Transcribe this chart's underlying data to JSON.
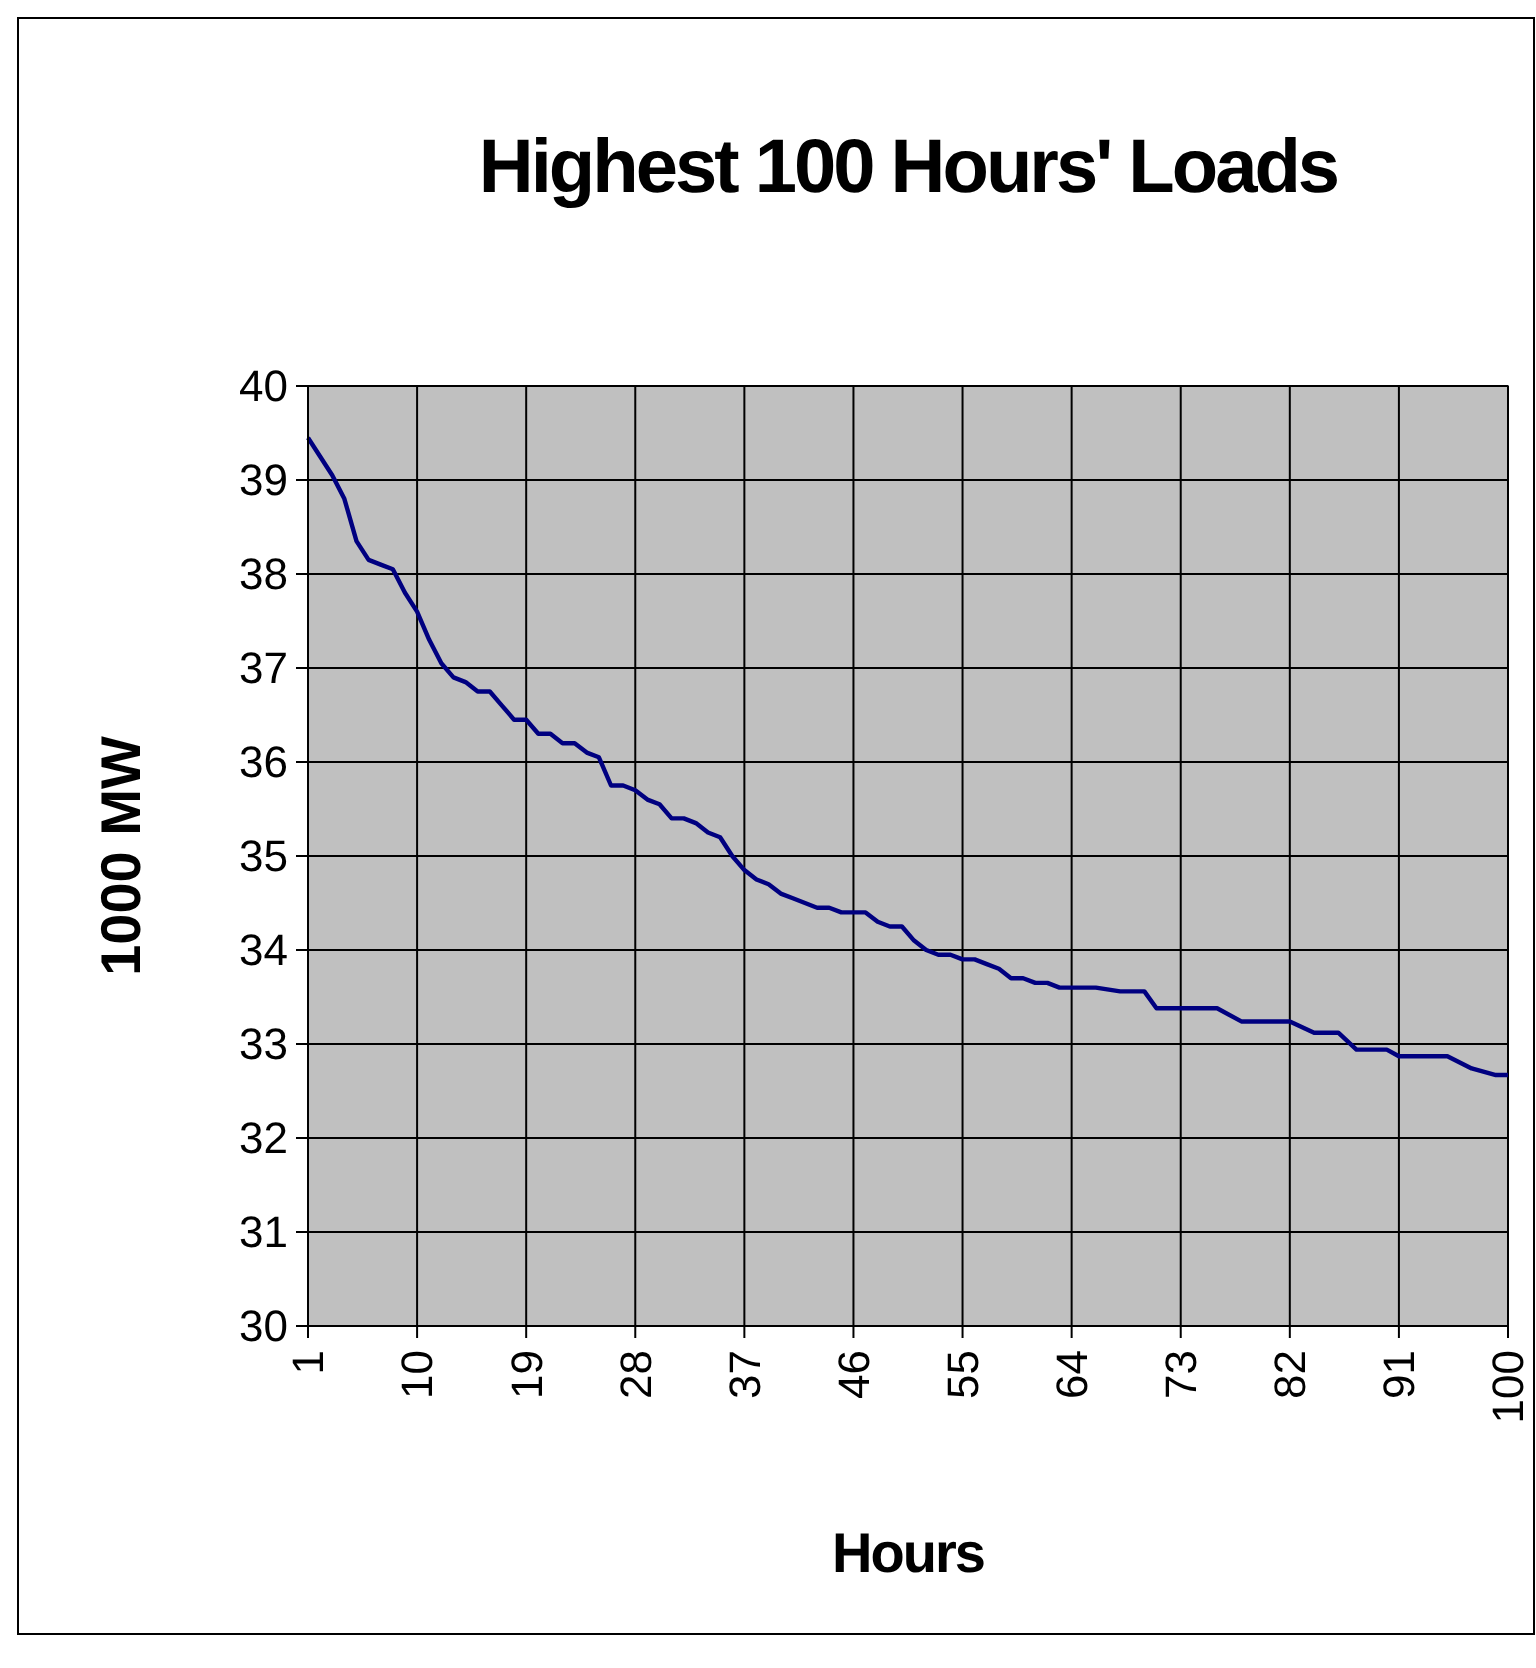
{
  "chart_data": {
    "type": "line",
    "title": "Highest 100 Hours' Loads",
    "xlabel": "Hours",
    "ylabel": "1000 MW",
    "xlim": [
      1,
      100
    ],
    "xticks": [
      1,
      10,
      19,
      28,
      37,
      46,
      55,
      64,
      73,
      82,
      91,
      100
    ],
    "ylim": [
      30,
      40
    ],
    "yticks": [
      30,
      31,
      32,
      33,
      34,
      35,
      36,
      37,
      38,
      39,
      40
    ],
    "grid": true,
    "marker": "none",
    "line_style": "solid",
    "series": [
      {
        "color": "#000080",
        "x": [
          1,
          2,
          3,
          4,
          5,
          6,
          7,
          8,
          9,
          10,
          11,
          12,
          13,
          14,
          15,
          16,
          17,
          18,
          19,
          20,
          21,
          22,
          23,
          24,
          25,
          26,
          27,
          28,
          29,
          30,
          31,
          32,
          33,
          34,
          35,
          36,
          37,
          38,
          39,
          40,
          41,
          42,
          43,
          44,
          45,
          46,
          47,
          48,
          49,
          50,
          51,
          52,
          53,
          54,
          55,
          56,
          57,
          58,
          59,
          60,
          61,
          62,
          63,
          64,
          65,
          66,
          68,
          70,
          71,
          76,
          78,
          82,
          84,
          86,
          87.5,
          90,
          91,
          95,
          97,
          99,
          100
        ],
        "values": [
          39.45,
          39.25,
          39.05,
          38.8,
          38.35,
          38.15,
          38.1,
          38.05,
          37.8,
          37.6,
          37.3,
          37.05,
          36.9,
          36.85,
          36.75,
          36.75,
          36.6,
          36.45,
          36.45,
          36.3,
          36.3,
          36.2,
          36.2,
          36.1,
          36.05,
          35.75,
          35.75,
          35.7,
          35.6,
          35.55,
          35.4,
          35.4,
          35.35,
          35.25,
          35.2,
          35.0,
          34.85,
          34.75,
          34.7,
          34.6,
          34.55,
          34.5,
          34.45,
          34.45,
          34.4,
          34.4,
          34.4,
          34.3,
          34.25,
          34.25,
          34.1,
          34.0,
          33.95,
          33.95,
          33.9,
          33.9,
          33.85,
          33.8,
          33.7,
          33.7,
          33.65,
          33.65,
          33.6,
          33.6,
          33.6,
          33.6,
          33.56,
          33.56,
          33.38,
          33.38,
          33.24,
          33.24,
          33.12,
          33.12,
          32.94,
          32.94,
          32.87,
          32.87,
          32.74,
          32.67,
          32.67
        ]
      }
    ]
  }
}
